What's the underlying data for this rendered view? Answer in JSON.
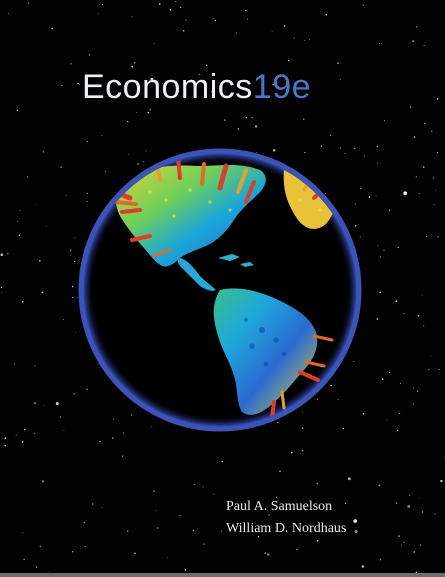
{
  "cover": {
    "title": "Economics",
    "edition": "19e",
    "authors": [
      "Paul A. Samuelson",
      "William D. Nordhaus"
    ]
  },
  "colors": {
    "background": "#020203",
    "title_text": "#eef1f5",
    "edition_text": "#4a78c8",
    "globe_rim": "#3c53b8",
    "land_low": "#1aa0dc",
    "land_mid": "#e8d83a",
    "land_high": "#d8402a"
  },
  "graphic": {
    "icon": "globe-icon",
    "description_visible": "Earth globe showing the Americas with colored data bars"
  }
}
